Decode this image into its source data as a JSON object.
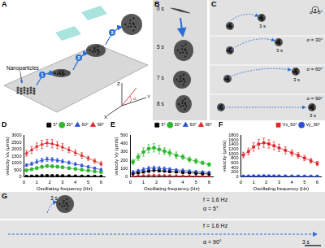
{
  "panels": {
    "A": {
      "label": "A",
      "nanoparticles": "Nanoparticles",
      "steps": [
        "1",
        "2",
        "3"
      ],
      "axes": [
        "X",
        "Y",
        "Z"
      ],
      "angle": "α"
    },
    "B": {
      "label": "B",
      "times": [
        "0 s",
        "5 s",
        "7 s",
        "8 s"
      ]
    },
    "C": {
      "label": "C",
      "lanes": [
        {
          "angle": "α = 5°",
          "time": "3 s"
        },
        {
          "angle": "α = 30°",
          "time": "3 s"
        },
        {
          "angle": "α = 60°",
          "time": "3 s"
        },
        {
          "angle": "α = 90°",
          "time": "3 s"
        }
      ]
    },
    "G": {
      "label": "G",
      "lanes": [
        {
          "frequency": "f = 1.6 Hz",
          "angle": "α = 5°",
          "time": "3 s"
        },
        {
          "frequency": "f = 1.6 Hz",
          "angle": "α = 90°",
          "time": "3 s"
        }
      ]
    }
  },
  "chart_data": [
    {
      "panel": "D",
      "type": "line",
      "x_label": "Oscillating frequency (Hz)",
      "y_label": "velocity Vx (μm/s)",
      "x": [
        0.2,
        0.6,
        1.0,
        1.4,
        1.8,
        2.2,
        2.6,
        3.0,
        3.5,
        4.0,
        4.5,
        5.0,
        5.5,
        6.0
      ],
      "xlim": [
        0,
        6.3
      ],
      "xticks": [
        0,
        1,
        2,
        3,
        4,
        5,
        6
      ],
      "ylim": [
        0,
        3000
      ],
      "yticks": [
        0,
        500,
        1000,
        1500,
        2000,
        2500,
        3000
      ],
      "legend": "upper right",
      "grid": false,
      "series": [
        {
          "name": "5°",
          "color": "#000000",
          "marker": "square",
          "values": [
            40,
            55,
            70,
            85,
            95,
            90,
            85,
            80,
            70,
            65,
            55,
            50,
            45,
            40
          ],
          "errors": [
            10,
            10,
            15,
            15,
            15,
            15,
            15,
            10,
            10,
            10,
            10,
            10,
            10,
            10
          ]
        },
        {
          "name": "30°",
          "color": "#2db82d",
          "marker": "circle",
          "values": [
            480,
            550,
            640,
            730,
            790,
            770,
            740,
            700,
            640,
            580,
            520,
            460,
            400,
            340
          ],
          "errors": [
            60,
            70,
            80,
            90,
            90,
            90,
            80,
            80,
            70,
            70,
            60,
            60,
            50,
            50
          ]
        },
        {
          "name": "60°",
          "color": "#2d4fd6",
          "marker": "triangle",
          "values": [
            850,
            950,
            1100,
            1200,
            1280,
            1250,
            1200,
            1130,
            1030,
            930,
            830,
            730,
            630,
            530
          ],
          "errors": [
            100,
            120,
            150,
            150,
            150,
            150,
            130,
            130,
            120,
            110,
            100,
            90,
            80,
            80
          ]
        },
        {
          "name": "90°",
          "color": "#e0262b",
          "marker": "triangle",
          "values": [
            1700,
            1950,
            2200,
            2350,
            2450,
            2400,
            2300,
            2150,
            1950,
            1750,
            1550,
            1350,
            1150,
            950
          ],
          "errors": [
            200,
            250,
            250,
            300,
            250,
            300,
            250,
            250,
            200,
            200,
            200,
            150,
            150,
            150
          ]
        }
      ]
    },
    {
      "panel": "E",
      "type": "line",
      "x_label": "Oscillating frequency (Hz)",
      "y_label": "velocity Vy (μm/s)",
      "x": [
        0.2,
        0.6,
        1.0,
        1.4,
        1.8,
        2.2,
        2.6,
        3.0,
        3.5,
        4.0,
        4.5,
        5.0,
        5.5,
        6.0
      ],
      "xlim": [
        0,
        6.3
      ],
      "xticks": [
        0,
        1,
        2,
        3,
        4,
        5,
        6
      ],
      "ylim": [
        0,
        500
      ],
      "yticks": [
        0,
        100,
        200,
        300,
        400,
        500
      ],
      "legend": "upper right",
      "grid": false,
      "series": [
        {
          "name": "5°",
          "color": "#000000",
          "marker": "square",
          "values": [
            40,
            50,
            60,
            70,
            80,
            75,
            70,
            65,
            60,
            55,
            50,
            45,
            40,
            35
          ],
          "errors": [
            10,
            10,
            10,
            15,
            15,
            15,
            10,
            10,
            10,
            10,
            10,
            10,
            10,
            10
          ]
        },
        {
          "name": "30°",
          "color": "#2db82d",
          "marker": "circle",
          "values": [
            180,
            240,
            300,
            340,
            350,
            330,
            310,
            290,
            260,
            240,
            210,
            190,
            170,
            150
          ],
          "errors": [
            30,
            40,
            50,
            50,
            50,
            50,
            40,
            40,
            40,
            30,
            30,
            30,
            20,
            20
          ]
        },
        {
          "name": "60°",
          "color": "#2d4fd6",
          "marker": "triangle",
          "values": [
            60,
            75,
            90,
            105,
            110,
            105,
            100,
            95,
            85,
            80,
            70,
            65,
            60,
            55
          ],
          "errors": [
            15,
            15,
            20,
            20,
            20,
            20,
            20,
            15,
            15,
            15,
            15,
            10,
            10,
            10
          ]
        },
        {
          "name": "90°",
          "color": "#e0262b",
          "marker": "triangle",
          "values": [
            10,
            12,
            15,
            18,
            20,
            18,
            16,
            15,
            13,
            12,
            10,
            10,
            9,
            8
          ],
          "errors": [
            5,
            5,
            5,
            5,
            5,
            5,
            5,
            5,
            5,
            5,
            5,
            5,
            5,
            5
          ]
        }
      ]
    },
    {
      "panel": "F",
      "type": "line",
      "x_label": "Oscillating frequency (Hz)",
      "y_label": "velocity (μm/s)",
      "x": [
        0.2,
        0.6,
        1.0,
        1.4,
        1.8,
        2.2,
        2.6,
        3.0,
        3.5,
        4.0,
        4.5,
        5.0,
        5.5,
        6.0
      ],
      "xlim": [
        0,
        6.3
      ],
      "xticks": [
        0,
        1,
        2,
        3,
        4,
        5,
        6
      ],
      "ylim": [
        0,
        1800
      ],
      "yticks": [
        0,
        200,
        400,
        600,
        800,
        1000,
        1200,
        1400,
        1600,
        1800
      ],
      "legend": "upper right",
      "grid": false,
      "series": [
        {
          "name": "Vx_90°",
          "color": "#e0262b",
          "marker": "square",
          "values": [
            950,
            1100,
            1300,
            1420,
            1480,
            1430,
            1350,
            1260,
            1150,
            1040,
            930,
            820,
            700,
            580
          ],
          "errors": [
            120,
            150,
            180,
            200,
            200,
            180,
            170,
            160,
            150,
            130,
            120,
            110,
            100,
            90
          ]
        },
        {
          "name": "Vy_90°",
          "color": "#2d4fd6",
          "marker": "circle",
          "values": [
            20,
            25,
            30,
            32,
            35,
            33,
            30,
            28,
            26,
            24,
            22,
            20,
            18,
            16
          ],
          "errors": [
            10,
            10,
            10,
            10,
            10,
            10,
            10,
            10,
            10,
            10,
            10,
            10,
            10,
            10
          ]
        }
      ]
    }
  ]
}
